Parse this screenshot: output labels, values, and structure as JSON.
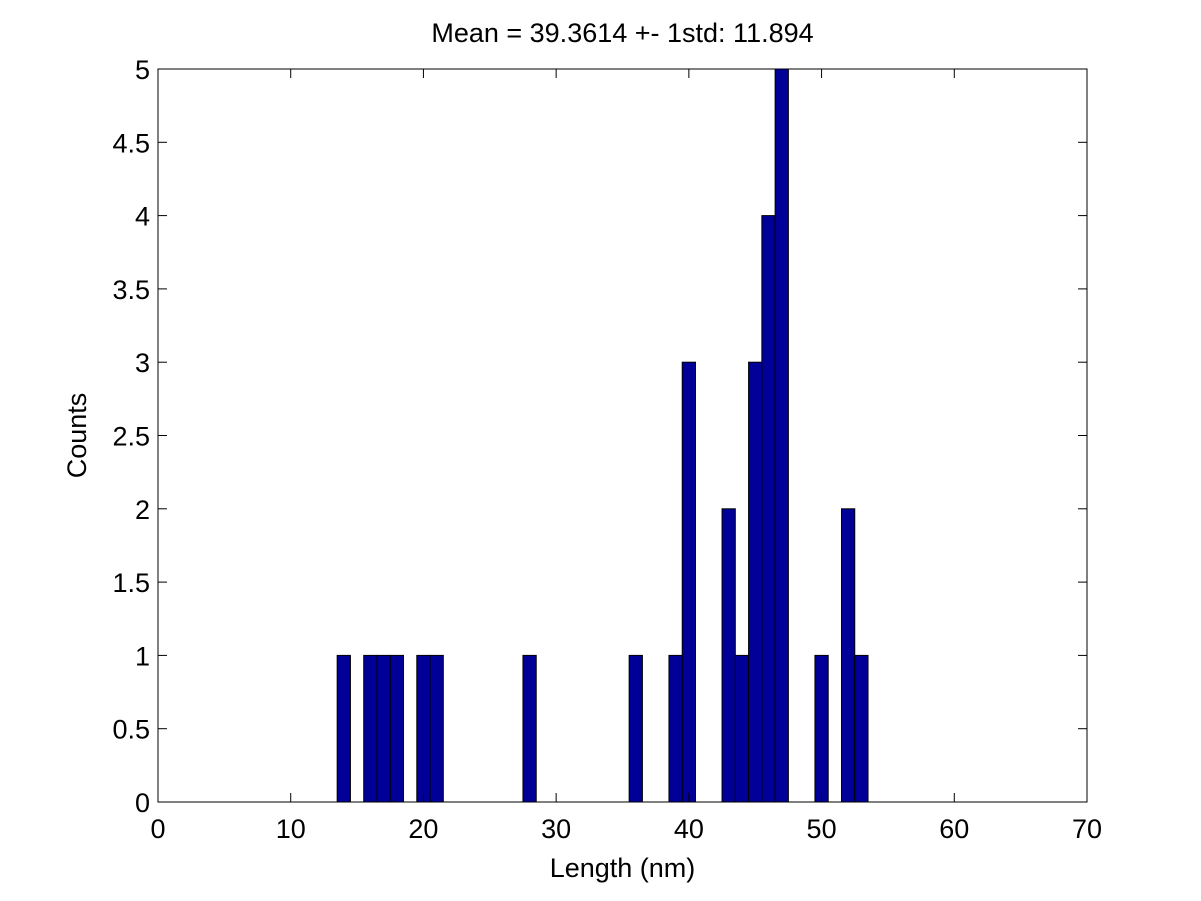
{
  "chart_data": {
    "type": "bar",
    "title": "Mean = 39.3614 +- 1std: 11.894",
    "xlabel": "Length (nm)",
    "ylabel": "Counts",
    "xlim": [
      0,
      70
    ],
    "ylim": [
      0,
      5
    ],
    "xticks": [
      0,
      10,
      20,
      30,
      40,
      50,
      60,
      70
    ],
    "yticks": [
      0,
      0.5,
      1,
      1.5,
      2,
      2.5,
      3,
      3.5,
      4,
      4.5,
      5
    ],
    "bin_width": 1,
    "bars": [
      {
        "x": 14,
        "count": 1
      },
      {
        "x": 16,
        "count": 1
      },
      {
        "x": 17,
        "count": 1
      },
      {
        "x": 18,
        "count": 1
      },
      {
        "x": 20,
        "count": 1
      },
      {
        "x": 21,
        "count": 1
      },
      {
        "x": 28,
        "count": 1
      },
      {
        "x": 36,
        "count": 1
      },
      {
        "x": 39,
        "count": 1
      },
      {
        "x": 40,
        "count": 3
      },
      {
        "x": 43,
        "count": 2
      },
      {
        "x": 44,
        "count": 1
      },
      {
        "x": 45,
        "count": 3
      },
      {
        "x": 46,
        "count": 4
      },
      {
        "x": 47,
        "count": 5
      },
      {
        "x": 50,
        "count": 1
      },
      {
        "x": 52,
        "count": 2
      },
      {
        "x": 53,
        "count": 1
      }
    ],
    "bar_color": "#000099",
    "bar_edge_color": "#000000",
    "grid": false,
    "legend": "none"
  }
}
